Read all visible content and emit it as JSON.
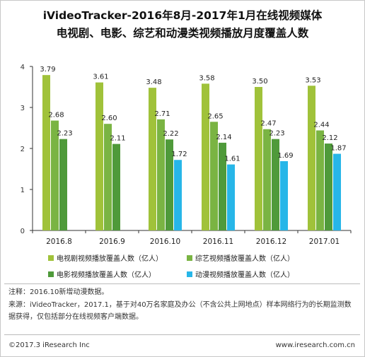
{
  "title_line1": "iVideoTracker-2016年8月-2017年1月在线视频媒体",
  "title_line2": "电视剧、电影、综艺和动漫类视频播放月度覆盖人数",
  "chart_data": {
    "type": "bar",
    "categories": [
      "2016.8",
      "2016.9",
      "2016.10",
      "2016.11",
      "2016.12",
      "2017.01"
    ],
    "ylim": [
      0,
      4
    ],
    "yticks": [
      "0",
      "1",
      "2",
      "3",
      "4"
    ],
    "grid": false,
    "legend_position": "bottom",
    "series": [
      {
        "name": "电视剧视频播放覆盖人数（亿人）",
        "color": "#a0c23a",
        "values": [
          3.79,
          3.61,
          3.48,
          3.58,
          3.5,
          3.53
        ],
        "labels": [
          "3.79",
          "3.61",
          "3.48",
          "3.58",
          "3.50",
          "3.53"
        ]
      },
      {
        "name": "综艺视频播放覆盖人数（亿人）",
        "color": "#7ab443",
        "values": [
          2.68,
          2.6,
          2.71,
          2.65,
          2.47,
          2.44
        ],
        "labels": [
          "2.68",
          "2.60",
          "2.71",
          "2.65",
          "2.47",
          "2.44"
        ]
      },
      {
        "name": "电影视频播放覆盖人数（亿人）",
        "color": "#4f9a3a",
        "values": [
          2.23,
          2.11,
          2.22,
          2.14,
          2.23,
          2.12
        ],
        "labels": [
          "2.23",
          "2.11",
          "2.22",
          "2.14",
          "2.23",
          "2.12"
        ]
      },
      {
        "name": "动漫视频播放覆盖人数（亿人）",
        "color": "#27b6e8",
        "values": [
          null,
          null,
          1.72,
          1.61,
          1.69,
          1.87
        ],
        "labels": [
          "",
          "",
          "1.72",
          "1.61",
          "1.69",
          "1.87"
        ]
      }
    ]
  },
  "notes": {
    "note1": "注释：2016.10新增动漫数据。",
    "source": "来源：iVideoTracker，2017.1，基于对40万名家庭及办公（不含公共上网地点）样本网络行为的长期监测数据获得，仅包括部分在线视频客户端数据。"
  },
  "footer": {
    "copyright": "©2017.3 iResearch Inc",
    "website": "www.iresearch.com.cn"
  }
}
